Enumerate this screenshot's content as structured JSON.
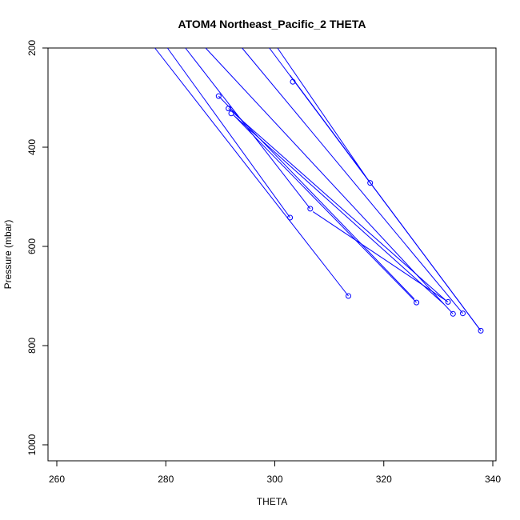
{
  "chart_data": {
    "type": "line",
    "title": "ATOM4 Northeast_Pacific_2 THETA",
    "xlabel": "THETA",
    "ylabel": "Pressure (mbar)",
    "xlim": [
      258,
      340
    ],
    "ylim": [
      1030,
      200
    ],
    "y_reversed": true,
    "grid": false,
    "legend": "none",
    "x_ticks": [
      "260",
      "280",
      "300",
      "320",
      "340"
    ],
    "y_ticks": [
      "200",
      "400",
      "600",
      "800",
      "1000"
    ],
    "colors": {
      "series": "#0000ff",
      "axis": "#000000",
      "background": "#ffffff"
    },
    "series": [
      {
        "points": [
          [
            313.5,
            700
          ],
          [
            278.0,
            200
          ]
        ]
      },
      {
        "points": [
          [
            302.8,
            542
          ],
          [
            280.3,
            200
          ]
        ]
      },
      {
        "points": [
          [
            306.5,
            524
          ],
          [
            283.6,
            200
          ]
        ]
      },
      {
        "points": [
          [
            289.7,
            297
          ],
          [
            325.6,
            706
          ]
        ]
      },
      {
        "points": [
          [
            326.0,
            713
          ],
          [
            292.4,
            335
          ],
          [
            331.0,
            716
          ]
        ]
      },
      {
        "points": [
          [
            291.5,
            322
          ],
          [
            331.5,
            710
          ]
        ]
      },
      {
        "points": [
          [
            307.0,
            530
          ],
          [
            331.8,
            712
          ]
        ]
      },
      {
        "points": [
          [
            332.7,
            736
          ],
          [
            287.3,
            200
          ]
        ]
      },
      {
        "points": [
          [
            334.5,
            735
          ],
          [
            294.0,
            200
          ]
        ]
      },
      {
        "points": [
          [
            337.8,
            770
          ],
          [
            299.0,
            200
          ]
        ]
      },
      {
        "points": [
          [
            337.8,
            770
          ],
          [
            302.8,
            255
          ],
          [
            317.5,
            472
          ],
          [
            300.5,
            200
          ]
        ]
      }
    ],
    "markers": [
      [
        313.5,
        700
      ],
      [
        302.8,
        542
      ],
      [
        306.5,
        524
      ],
      [
        289.7,
        297
      ],
      [
        326.0,
        713
      ],
      [
        291.5,
        322
      ],
      [
        292.0,
        332
      ],
      [
        332.7,
        736
      ],
      [
        334.5,
        735
      ],
      [
        337.8,
        770
      ],
      [
        331.8,
        712
      ],
      [
        303.3,
        268
      ],
      [
        317.5,
        472
      ]
    ]
  }
}
